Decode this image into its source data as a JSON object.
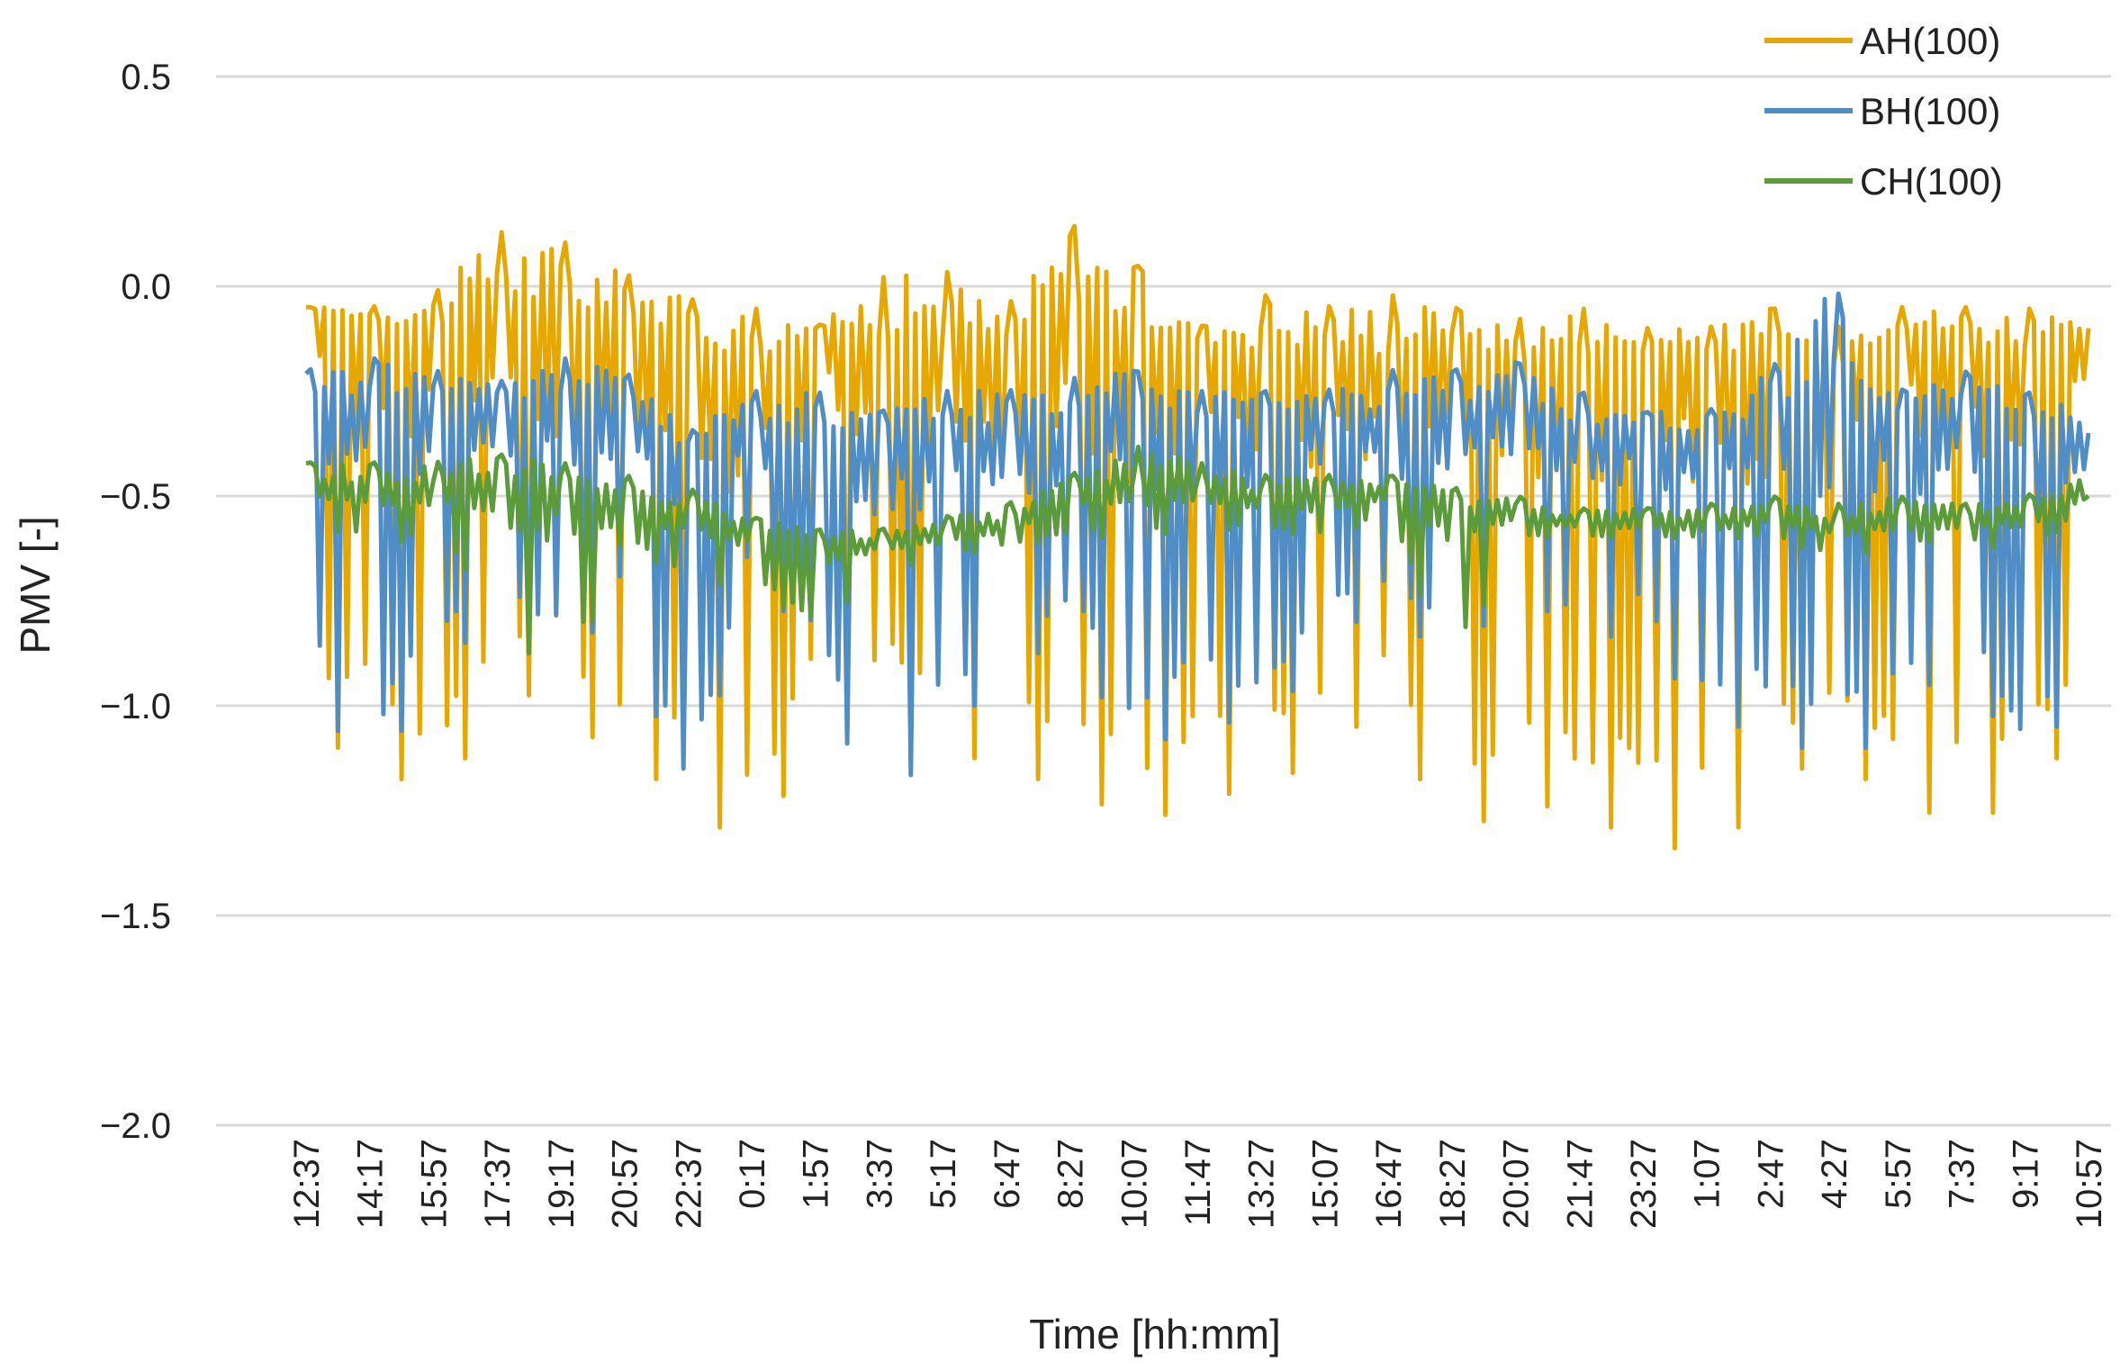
{
  "chart_data": {
    "type": "line",
    "title": "",
    "xlabel": "Time [hh:mm]",
    "ylabel": "PMV [-]",
    "ylim": [
      -2.0,
      0.5
    ],
    "yticks": [
      0.5,
      0.0,
      -0.5,
      -1.0,
      -1.5,
      -2.0
    ],
    "ytick_labels": [
      "0.5",
      "0.0",
      "−0.5",
      "−1.0",
      "−1.5",
      "−2.0"
    ],
    "grid": true,
    "legend_position": "top-right",
    "categories": [
      "12:37",
      "14:17",
      "15:57",
      "17:37",
      "19:17",
      "20:57",
      "22:37",
      "0:17",
      "1:57",
      "3:37",
      "5:17",
      "6:47",
      "8:27",
      "10:07",
      "11:47",
      "13:27",
      "15:07",
      "16:47",
      "18:27",
      "20:07",
      "21:47",
      "23:27",
      "1:07",
      "2:47",
      "4:27",
      "5:57",
      "7:37",
      "9:17",
      "10:57"
    ],
    "series": [
      {
        "name": "AH(100)",
        "color": "#E6A800",
        "values": [
          -0.05,
          -0.1,
          -0.15,
          -0.12,
          -0.2,
          -0.1,
          -0.18,
          -0.25,
          -0.1,
          -0.2,
          -0.22,
          -0.25,
          -0.12,
          -0.2,
          -0.15,
          -0.22,
          -0.2,
          -0.25,
          -0.15,
          -0.25,
          -0.22,
          -0.2,
          -0.18,
          -0.25,
          -0.25,
          -0.12,
          -0.18,
          -0.2,
          -0.1
        ],
        "min_values": [
          -1.15,
          -1.05,
          -1.3,
          -0.95,
          -1.0,
          -1.15,
          -1.2,
          -1.38,
          -1.05,
          -1.0,
          -1.05,
          -1.2,
          -1.15,
          -1.32,
          -1.2,
          -1.22,
          -1.1,
          -1.0,
          -1.35,
          -1.2,
          -1.28,
          -1.3,
          -1.38,
          -1.2,
          -1.1,
          -1.25,
          -1.26,
          -1.25,
          -1.0
        ],
        "max_values": [
          -0.05,
          -0.05,
          -0.02,
          0.13,
          0.11,
          0.03,
          -0.03,
          -0.05,
          -0.1,
          0.02,
          0.04,
          -0.05,
          0.15,
          0.06,
          -0.1,
          -0.02,
          -0.05,
          -0.02,
          -0.05,
          -0.08,
          -0.05,
          -0.1,
          -0.1,
          -0.05,
          -0.1,
          -0.05,
          -0.05,
          -0.05,
          -0.1
        ]
      },
      {
        "name": "BH(100)",
        "color": "#4F8DC6",
        "values": [
          -0.35,
          -0.3,
          -0.3,
          -0.32,
          -0.3,
          -0.3,
          -0.42,
          -0.35,
          -0.4,
          -0.35,
          -0.35,
          -0.38,
          -0.35,
          -0.3,
          -0.35,
          -0.32,
          -0.33,
          -0.35,
          -0.35,
          -0.3,
          -0.38,
          -0.35,
          -0.38,
          -0.35,
          -0.3,
          -0.35,
          -0.32,
          -0.35,
          -0.35
        ],
        "min_values": [
          -0.9,
          -1.22,
          -0.9,
          -0.8,
          -0.9,
          -0.75,
          -1.3,
          -0.65,
          -0.9,
          -1.28,
          -1.05,
          -0.95,
          -0.8,
          -1.16,
          -1.0,
          -1.08,
          -0.85,
          -0.75,
          -0.92,
          -0.7,
          -0.85,
          -0.82,
          -1.05,
          -1.05,
          -1.15,
          -1.05,
          -0.85,
          -1.2,
          -0.9
        ],
        "max_values": [
          -0.2,
          -0.17,
          -0.2,
          -0.23,
          -0.17,
          -0.2,
          -0.35,
          -0.25,
          -0.25,
          -0.3,
          -0.25,
          -0.25,
          -0.22,
          -0.2,
          -0.25,
          -0.25,
          -0.25,
          -0.2,
          -0.2,
          -0.18,
          -0.25,
          -0.3,
          -0.3,
          -0.2,
          0.0,
          -0.25,
          -0.2,
          -0.25,
          -0.3
        ]
      },
      {
        "name": "CH(100)",
        "color": "#5B9B3A",
        "values": [
          -0.48,
          -0.5,
          -0.5,
          -0.5,
          -0.5,
          -0.55,
          -0.55,
          -0.6,
          -0.62,
          -0.62,
          -0.6,
          -0.58,
          -0.5,
          -0.5,
          -0.5,
          -0.52,
          -0.52,
          -0.5,
          -0.55,
          -0.55,
          -0.57,
          -0.57,
          -0.58,
          -0.55,
          -0.58,
          -0.57,
          -0.57,
          -0.55,
          -0.5
        ],
        "min_values": [
          -0.55,
          -0.62,
          -0.6,
          -0.75,
          -1.0,
          -0.6,
          -0.72,
          -0.7,
          -0.83,
          -0.68,
          -0.65,
          -0.62,
          -0.6,
          -0.6,
          -0.58,
          -0.58,
          -0.6,
          -0.55,
          -0.92,
          -0.6,
          -0.6,
          -0.6,
          -0.6,
          -0.6,
          -0.65,
          -0.62,
          -0.6,
          -0.65,
          -0.52
        ],
        "max_values": [
          -0.42,
          -0.42,
          -0.42,
          -0.4,
          -0.42,
          -0.45,
          -0.48,
          -0.55,
          -0.58,
          -0.58,
          -0.55,
          -0.52,
          -0.45,
          -0.38,
          -0.42,
          -0.45,
          -0.45,
          -0.45,
          -0.48,
          -0.5,
          -0.53,
          -0.53,
          -0.52,
          -0.5,
          -0.52,
          -0.5,
          -0.52,
          -0.5,
          -0.45
        ]
      }
    ]
  }
}
